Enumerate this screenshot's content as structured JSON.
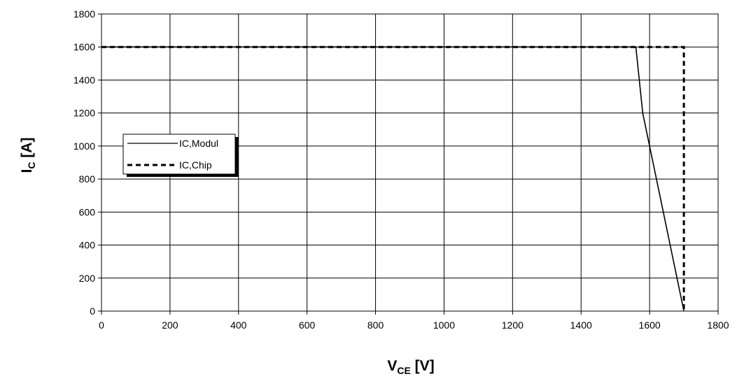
{
  "chart_data": {
    "type": "line",
    "title": "",
    "xlabel": {
      "main": "V",
      "sub": "CE",
      "unit": " [V]"
    },
    "ylabel": {
      "main": "I",
      "sub": "C",
      "unit": " [A]"
    },
    "xlim": [
      0,
      1800
    ],
    "ylim": [
      0,
      1800
    ],
    "xticks": [
      0,
      200,
      400,
      600,
      800,
      1000,
      1200,
      1400,
      1600,
      1800
    ],
    "yticks": [
      0,
      200,
      400,
      600,
      800,
      1000,
      1200,
      1400,
      1600,
      1800
    ],
    "grid": true,
    "legend_position": "middle-left",
    "series": [
      {
        "name": "IC,Modul",
        "style": "solid",
        "color": "#000000",
        "points": [
          [
            0,
            1600
          ],
          [
            1560,
            1600
          ],
          [
            1580,
            1200
          ],
          [
            1600,
            1000
          ],
          [
            1620,
            800
          ],
          [
            1640,
            600
          ],
          [
            1660,
            400
          ],
          [
            1680,
            200
          ],
          [
            1700,
            0
          ]
        ]
      },
      {
        "name": "IC,Chip",
        "style": "dashed",
        "color": "#000000",
        "points": [
          [
            0,
            1600
          ],
          [
            1700,
            1600
          ],
          [
            1700,
            0
          ]
        ]
      }
    ]
  }
}
